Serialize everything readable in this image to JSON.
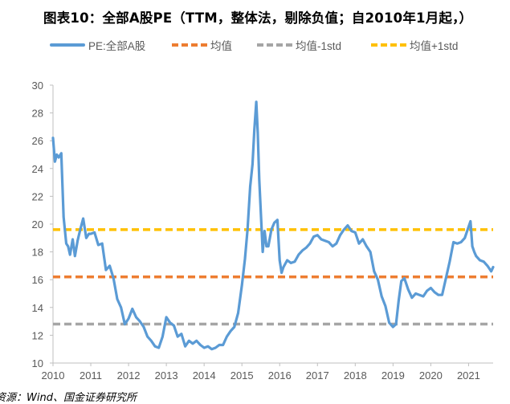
{
  "title": "图表10：全部A股PE（TTM，整体法，剔除负值；自2010年1月起，）",
  "source": "资源：Wind、国金证券研究所",
  "colors": {
    "pe": "#5b9bd5",
    "mean": "#ed7d31",
    "minus": "#a5a5a5",
    "plus": "#ffc000",
    "axis": "#bfbfbf",
    "text": "#595959"
  },
  "legend": [
    {
      "label": "PE:全部A股",
      "style": "solid",
      "color": "#5b9bd5"
    },
    {
      "label": "均值",
      "style": "dash",
      "color": "#ed7d31"
    },
    {
      "label": "均值-1std",
      "style": "dash",
      "color": "#a5a5a5"
    },
    {
      "label": "均值+1std",
      "style": "dash",
      "color": "#ffc000"
    }
  ],
  "chart_data": {
    "type": "line",
    "title": "图表10：全部A股PE（TTM，整体法，剔除负值；自2010年1月起，）",
    "xlabel": "",
    "ylabel": "",
    "x_ticks": [
      "2010",
      "2011",
      "2012",
      "2013",
      "2014",
      "2015",
      "2016",
      "2017",
      "2018",
      "2019",
      "2020",
      "2021"
    ],
    "y_ticks": [
      10,
      12,
      14,
      16,
      18,
      20,
      22,
      24,
      26,
      28,
      30
    ],
    "xlim": [
      2010.0,
      2021.65
    ],
    "ylim": [
      10,
      30
    ],
    "grid": false,
    "legend_position": "top",
    "series": [
      {
        "name": "PE:全部A股",
        "style": "solid",
        "x": [
          2010.0,
          2010.05,
          2010.1,
          2010.15,
          2010.22,
          2010.28,
          2010.35,
          2010.4,
          2010.45,
          2010.52,
          2010.58,
          2010.65,
          2010.72,
          2010.8,
          2010.88,
          2010.95,
          2011.0,
          2011.1,
          2011.2,
          2011.3,
          2011.4,
          2011.5,
          2011.6,
          2011.7,
          2011.8,
          2011.9,
          2012.0,
          2012.1,
          2012.2,
          2012.3,
          2012.4,
          2012.5,
          2012.6,
          2012.7,
          2012.8,
          2012.9,
          2013.0,
          2013.1,
          2013.2,
          2013.3,
          2013.4,
          2013.5,
          2013.6,
          2013.7,
          2013.8,
          2013.9,
          2014.0,
          2014.1,
          2014.2,
          2014.3,
          2014.4,
          2014.5,
          2014.6,
          2014.7,
          2014.8,
          2014.9,
          2015.0,
          2015.08,
          2015.15,
          2015.22,
          2015.28,
          2015.33,
          2015.38,
          2015.42,
          2015.46,
          2015.5,
          2015.55,
          2015.6,
          2015.65,
          2015.7,
          2015.78,
          2015.86,
          2015.94,
          2016.0,
          2016.05,
          2016.1,
          2016.2,
          2016.3,
          2016.4,
          2016.5,
          2016.6,
          2016.7,
          2016.8,
          2016.9,
          2017.0,
          2017.1,
          2017.2,
          2017.3,
          2017.4,
          2017.5,
          2017.6,
          2017.7,
          2017.8,
          2017.9,
          2018.0,
          2018.1,
          2018.2,
          2018.3,
          2018.4,
          2018.5,
          2018.6,
          2018.7,
          2018.8,
          2018.9,
          2019.0,
          2019.08,
          2019.15,
          2019.22,
          2019.3,
          2019.4,
          2019.5,
          2019.6,
          2019.7,
          2019.8,
          2019.9,
          2020.0,
          2020.1,
          2020.2,
          2020.3,
          2020.4,
          2020.5,
          2020.6,
          2020.7,
          2020.8,
          2020.9,
          2021.0,
          2021.05,
          2021.1,
          2021.15,
          2021.2,
          2021.3,
          2021.4,
          2021.5,
          2021.6,
          2021.65
        ],
        "values": [
          26.2,
          24.5,
          25.0,
          24.8,
          25.1,
          20.5,
          18.6,
          18.4,
          17.8,
          18.9,
          17.7,
          18.8,
          19.6,
          20.4,
          19.0,
          19.3,
          19.3,
          19.4,
          18.5,
          18.6,
          16.7,
          17.0,
          16.1,
          14.6,
          14.0,
          12.8,
          13.2,
          13.9,
          13.3,
          13.0,
          12.6,
          11.9,
          11.6,
          11.2,
          11.1,
          11.9,
          13.3,
          12.9,
          12.7,
          11.9,
          12.1,
          11.2,
          11.6,
          11.4,
          11.6,
          11.3,
          11.1,
          11.2,
          11.0,
          11.1,
          11.3,
          11.3,
          11.9,
          12.3,
          12.6,
          13.6,
          15.6,
          17.5,
          19.6,
          22.7,
          24.3,
          26.8,
          28.8,
          26.6,
          23.2,
          20.9,
          18.0,
          19.5,
          18.4,
          18.4,
          19.6,
          20.1,
          20.3,
          17.4,
          16.5,
          16.9,
          17.4,
          17.2,
          17.3,
          17.8,
          18.1,
          18.3,
          18.6,
          19.1,
          19.2,
          18.9,
          18.8,
          18.7,
          18.4,
          18.6,
          19.2,
          19.6,
          19.9,
          19.5,
          19.4,
          18.6,
          18.9,
          18.4,
          18.0,
          16.6,
          16.0,
          14.8,
          14.1,
          12.9,
          12.6,
          12.8,
          14.5,
          15.9,
          16.1,
          15.3,
          14.7,
          15.0,
          14.9,
          14.8,
          15.2,
          15.4,
          15.1,
          14.9,
          14.9,
          16.1,
          17.3,
          18.7,
          18.6,
          18.7,
          19.0,
          19.8,
          20.2,
          18.4,
          18.0,
          17.7,
          17.4,
          17.3,
          17.0,
          16.6,
          16.9
        ]
      },
      {
        "name": "均值",
        "style": "dash",
        "constant": 16.2
      },
      {
        "name": "均值-1std",
        "style": "dash",
        "constant": 12.8
      },
      {
        "name": "均值+1std",
        "style": "dash",
        "constant": 19.6
      }
    ]
  }
}
